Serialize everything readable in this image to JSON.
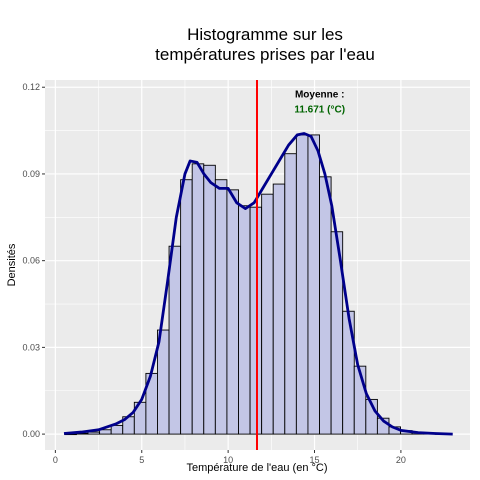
{
  "chart_data": {
    "type": "bar",
    "title": [
      "Histogramme sur les",
      "températures prises par l'eau"
    ],
    "xlabel": "Température de l'eau (en °C)",
    "ylabel": "Densités",
    "xlim": [
      -0.6,
      24
    ],
    "ylim": [
      -0.0055,
      0.1225
    ],
    "x_ticks": [
      0,
      5,
      10,
      15,
      20
    ],
    "x_tick_labels": [
      "0",
      "5",
      "10",
      "15",
      "20"
    ],
    "y_ticks": [
      0,
      0.03,
      0.06,
      0.09,
      0.12
    ],
    "y_tick_labels": [
      "0.00",
      "0.03",
      "0.06",
      "0.09",
      "0.12"
    ],
    "grid": true,
    "bin_width": 0.67,
    "bins": [
      {
        "x0": 0.55,
        "density": 0.0
      },
      {
        "x0": 1.22,
        "density": 0.0003
      },
      {
        "x0": 1.89,
        "density": 0.0007
      },
      {
        "x0": 2.56,
        "density": 0.0015
      },
      {
        "x0": 3.23,
        "density": 0.003
      },
      {
        "x0": 3.9,
        "density": 0.006
      },
      {
        "x0": 4.57,
        "density": 0.011
      },
      {
        "x0": 5.24,
        "density": 0.021
      },
      {
        "x0": 5.91,
        "density": 0.036
      },
      {
        "x0": 6.58,
        "density": 0.065
      },
      {
        "x0": 7.25,
        "density": 0.088
      },
      {
        "x0": 7.92,
        "density": 0.0935
      },
      {
        "x0": 8.59,
        "density": 0.093
      },
      {
        "x0": 9.26,
        "density": 0.088
      },
      {
        "x0": 9.93,
        "density": 0.0845
      },
      {
        "x0": 10.6,
        "density": 0.079
      },
      {
        "x0": 11.27,
        "density": 0.0785
      },
      {
        "x0": 11.94,
        "density": 0.083
      },
      {
        "x0": 12.61,
        "density": 0.0865
      },
      {
        "x0": 13.28,
        "density": 0.097
      },
      {
        "x0": 13.95,
        "density": 0.1035
      },
      {
        "x0": 14.62,
        "density": 0.1035
      },
      {
        "x0": 15.29,
        "density": 0.089
      },
      {
        "x0": 15.96,
        "density": 0.07
      },
      {
        "x0": 16.63,
        "density": 0.0425
      },
      {
        "x0": 17.3,
        "density": 0.0235
      },
      {
        "x0": 17.97,
        "density": 0.012
      },
      {
        "x0": 18.64,
        "density": 0.0055
      },
      {
        "x0": 19.31,
        "density": 0.0025
      },
      {
        "x0": 19.98,
        "density": 0.0012
      },
      {
        "x0": 20.65,
        "density": 0.0005
      },
      {
        "x0": 21.32,
        "density": 0.0002
      },
      {
        "x0": 21.99,
        "density": 0.0001
      }
    ],
    "density_curve": {
      "x": [
        0.5,
        1.5,
        2.5,
        3.5,
        4.0,
        4.5,
        5.0,
        5.5,
        6.0,
        6.5,
        7.0,
        7.5,
        7.8,
        8.2,
        8.6,
        9.0,
        9.5,
        10.0,
        10.5,
        11.0,
        11.5,
        12.0,
        12.5,
        13.0,
        13.5,
        14.0,
        14.4,
        14.8,
        15.2,
        15.6,
        16.0,
        16.5,
        17.0,
        17.5,
        18.0,
        18.5,
        19.0,
        19.5,
        20.0,
        21.0,
        22.0,
        23.0
      ],
      "y": [
        0.0002,
        0.0007,
        0.0015,
        0.0035,
        0.005,
        0.0075,
        0.012,
        0.02,
        0.032,
        0.053,
        0.075,
        0.09,
        0.0945,
        0.094,
        0.09,
        0.087,
        0.085,
        0.085,
        0.08,
        0.078,
        0.08,
        0.085,
        0.09,
        0.095,
        0.1,
        0.1035,
        0.104,
        0.103,
        0.098,
        0.09,
        0.079,
        0.06,
        0.04,
        0.024,
        0.014,
        0.008,
        0.0045,
        0.0025,
        0.0013,
        0.0005,
        0.0002,
        0.0
      ]
    },
    "mean_line": {
      "x": 11.671,
      "color": "#ff0000"
    },
    "annotation": {
      "line1": "Moyenne :",
      "line2": "11.671 (°C)",
      "x": 15.3,
      "y": 0.1165,
      "line2_color": "#006400"
    },
    "colors": {
      "panel_bg": "#ebebeb",
      "grid": "#ffffff",
      "bar_fill": "#c3c6e6",
      "bar_stroke": "#000000",
      "curve": "#00008b"
    }
  }
}
